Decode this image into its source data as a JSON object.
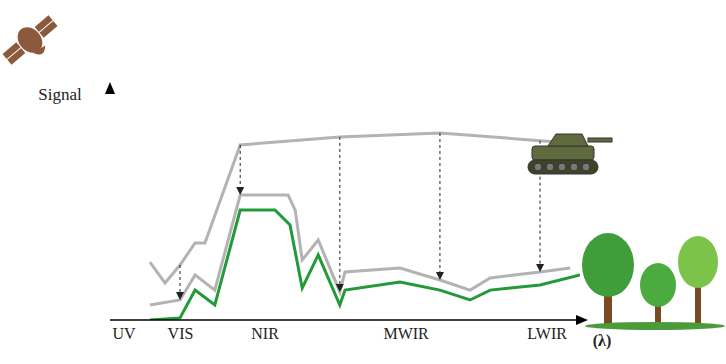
{
  "chart_data": {
    "type": "line",
    "x_label": "(λ)",
    "y_label": "Signal",
    "xlim": [
      0,
      100
    ],
    "ylim": [
      0,
      100
    ],
    "xticks": [
      {
        "value": 3,
        "label": "UV"
      },
      {
        "value": 15,
        "label": "VIS"
      },
      {
        "value": 33,
        "label": "NIR"
      },
      {
        "value": 63,
        "label": "MWIR"
      },
      {
        "value": 93,
        "label": "LWIR"
      }
    ],
    "tick_labels": "x",
    "grid": false,
    "series": [
      {
        "color": "#b3b3b3",
        "x": [
          8.5,
          11.7,
          14.9,
          18.1,
          20.2,
          27.7,
          48.9,
          70.2,
          89.4,
          97.9
        ],
        "values": [
          25.2,
          16.1,
          23.9,
          33.5,
          33.5,
          76.1,
          79.6,
          81.3,
          78.3,
          77
        ]
      },
      {
        "color": "#b3b3b3",
        "x": [
          8.5,
          14.9,
          18.1,
          22.3,
          27.7,
          37.9,
          39.4,
          40.9,
          44.3,
          48.9,
          50,
          61.7,
          70.2,
          76.6,
          80.9,
          91.5,
          97.9
        ],
        "values": [
          6.5,
          8.7,
          19.6,
          13,
          54.3,
          54.3,
          47.8,
          26.1,
          34.8,
          12.2,
          20.9,
          22.6,
          17.4,
          13,
          18.3,
          20.9,
          22.6
        ]
      },
      {
        "color": "#229a3a",
        "x": [
          8.5,
          14.9,
          18.1,
          22.3,
          27.7,
          35.1,
          38.3,
          40.9,
          44.3,
          48.9,
          50,
          61.7,
          70.2,
          76.6,
          80.9,
          91.5,
          100
        ],
        "values": [
          0,
          0.9,
          13,
          6.5,
          47.8,
          47.8,
          41.3,
          13.9,
          28.3,
          6.5,
          13,
          16.5,
          13,
          8.7,
          13,
          15.2,
          19.6
        ]
      }
    ]
  }
}
